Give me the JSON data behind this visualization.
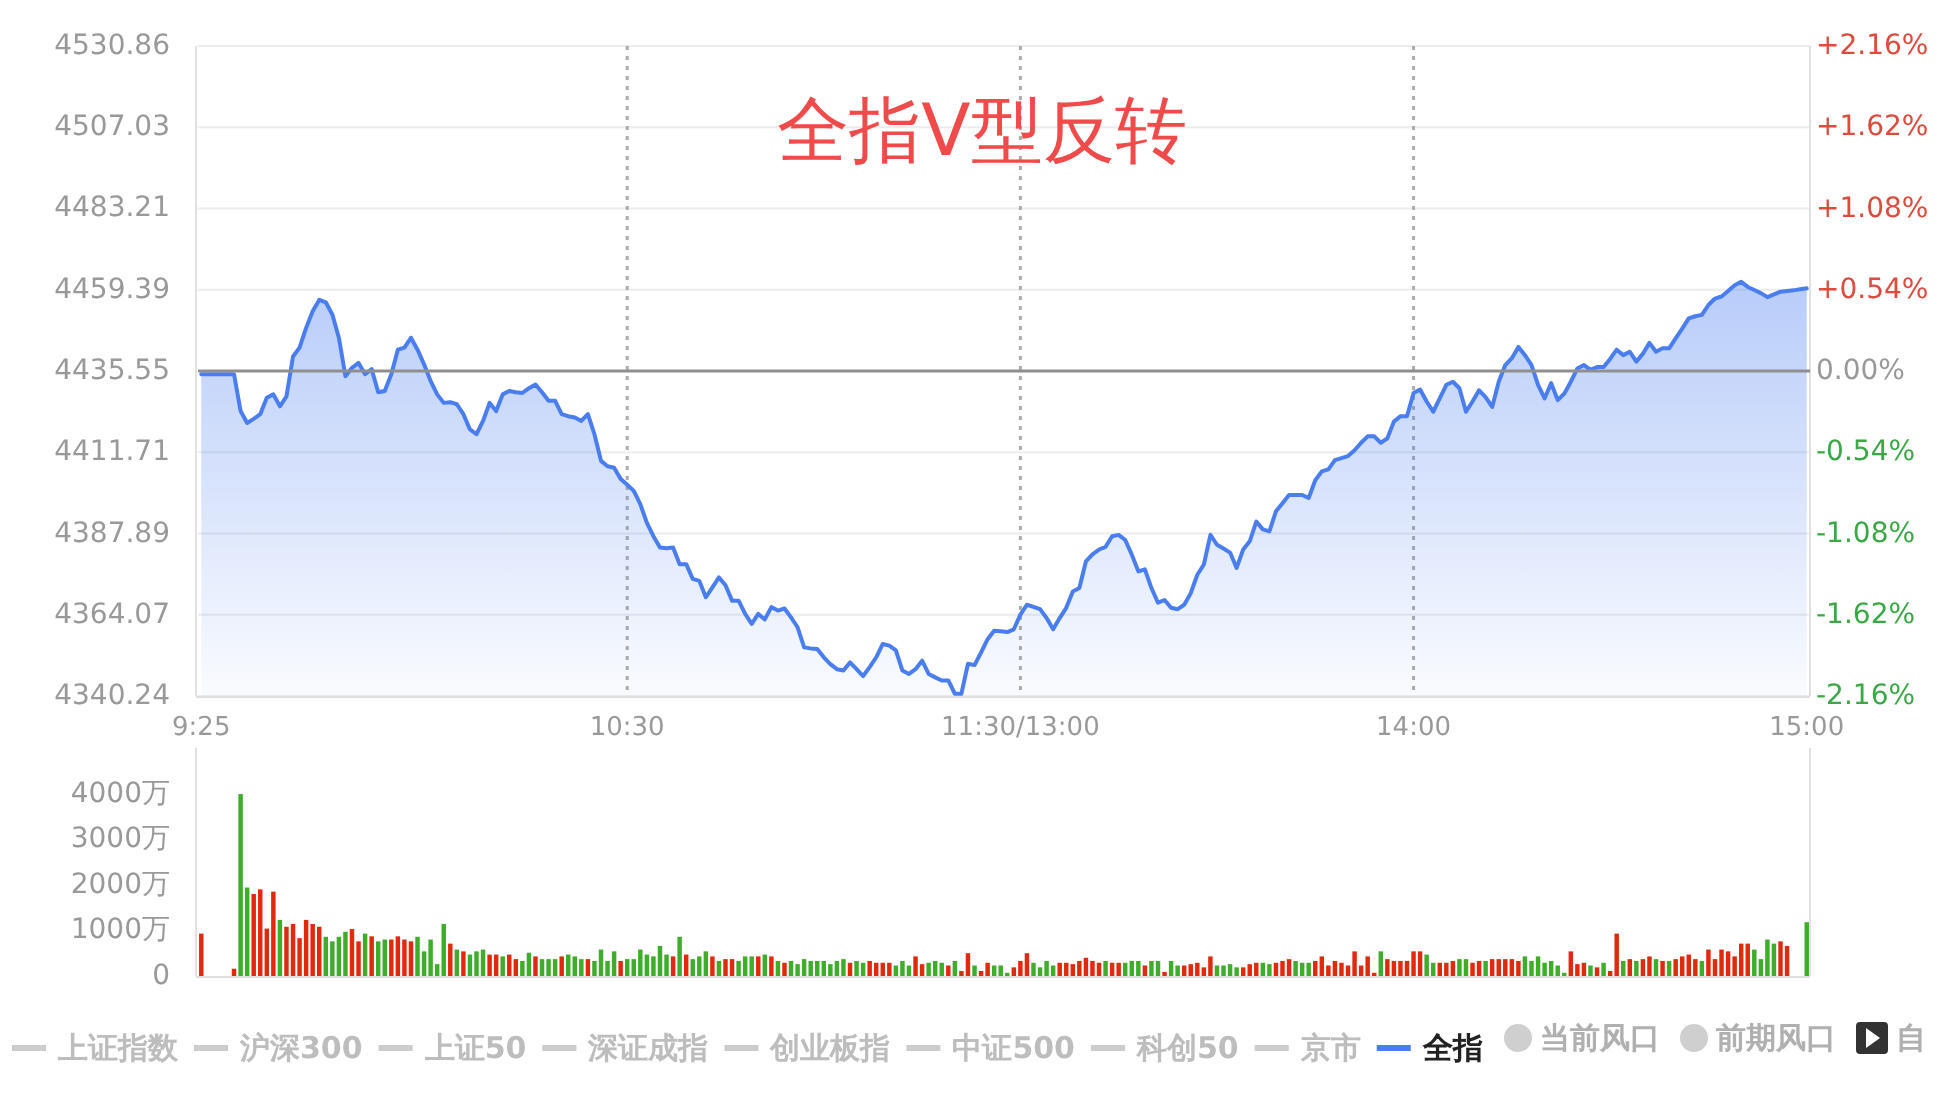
{
  "chart_data": [
    {
      "type": "area",
      "title": "全指V型反转",
      "categories": [
        "9:25",
        null,
        null,
        null,
        null,
        null,
        null,
        null,
        null,
        null,
        null,
        null,
        null,
        null,
        null,
        null,
        null,
        null,
        null,
        null,
        null,
        null,
        null,
        null,
        null,
        null,
        null,
        null,
        null,
        null,
        null,
        null,
        null,
        null,
        null,
        null,
        null,
        null,
        null,
        null,
        null,
        null,
        null,
        null,
        null,
        null,
        null,
        null,
        null,
        null,
        null,
        null,
        null,
        null,
        null,
        null,
        null,
        null,
        null,
        null,
        null,
        null,
        null,
        null,
        null,
        "10:30",
        null,
        null,
        null,
        null,
        null,
        null,
        null,
        null,
        null,
        null,
        null,
        null,
        null,
        null,
        null,
        null,
        null,
        null,
        null,
        null,
        null,
        null,
        null,
        null,
        null,
        null,
        null,
        null,
        null,
        null,
        null,
        null,
        null,
        null,
        null,
        null,
        null,
        null,
        null,
        null,
        null,
        null,
        null,
        null,
        null,
        null,
        null,
        null,
        null,
        null,
        null,
        null,
        null,
        null,
        null,
        null,
        null,
        null,
        null,
        "11:30/13:00",
        null,
        null,
        null,
        null,
        null,
        null,
        null,
        null,
        null,
        null,
        null,
        null,
        null,
        null,
        null,
        null,
        null,
        null,
        null,
        null,
        null,
        null,
        null,
        null,
        null,
        null,
        null,
        null,
        null,
        null,
        null,
        null,
        null,
        null,
        null,
        null,
        null,
        null,
        null,
        null,
        null,
        null,
        null,
        null,
        null,
        null,
        null,
        null,
        null,
        null,
        null,
        null,
        null,
        null,
        null,
        null,
        null,
        null,
        null,
        "14:00",
        null,
        null,
        null,
        null,
        null,
        null,
        null,
        null,
        null,
        null,
        null,
        null,
        null,
        null,
        null,
        null,
        null,
        null,
        null,
        null,
        null,
        null,
        null,
        null,
        null,
        null,
        null,
        null,
        null,
        null,
        null,
        null,
        null,
        null,
        null,
        null,
        null,
        null,
        null,
        null,
        null,
        null,
        null,
        null,
        null,
        null,
        null,
        null,
        null,
        null,
        null,
        null,
        null,
        null,
        null,
        null,
        null,
        null,
        null,
        "15:00"
      ],
      "ylim": [
        4340.24,
        4530.86
      ],
      "yticks": [
        4340.24,
        4364.07,
        4387.89,
        4411.71,
        4435.55,
        4459.39,
        4483.21,
        4507.03,
        4530.86
      ],
      "y2lim": [
        -2.16,
        2.16
      ],
      "y2ticks": [
        {
          "value": -2.16,
          "label": "-2.16%"
        },
        {
          "value": -1.62,
          "label": "-1.62%"
        },
        {
          "value": -1.08,
          "label": "-1.08%"
        },
        {
          "value": -0.54,
          "label": "-0.54%"
        },
        {
          "value": 0,
          "label": "0.00%"
        },
        {
          "value": 0.54,
          "label": "+0.54%"
        },
        {
          "value": 1.08,
          "label": "+1.08%"
        },
        {
          "value": 1.62,
          "label": "+1.62%"
        },
        {
          "value": 2.16,
          "label": "+2.16%"
        }
      ],
      "ref_lines": [
        {
          "axis": "y",
          "value": 4435.55,
          "color": "#8f8f8f"
        }
      ],
      "grid": true,
      "legend": "bottom",
      "series": [
        {
          "name": "全指",
          "color": "#4a7ef0",
          "values": [
            4434.6,
            4434.6,
            4434.6,
            4434.6,
            4434.6,
            4434.6,
            4423.8,
            4420.3,
            4421.5,
            4422.9,
            4427.7,
            4428.7,
            4425.2,
            4428.1,
            4439.8,
            4442.4,
            4448.2,
            4453.1,
            4456.4,
            4455.7,
            4452.1,
            4445.3,
            4434.0,
            4436.5,
            4437.9,
            4434.6,
            4436.1,
            4429.3,
            4429.7,
            4434.6,
            4441.8,
            4442.4,
            4445.3,
            4441.8,
            4437.5,
            4432.6,
            4428.7,
            4426.2,
            4426.4,
            4425.8,
            4422.9,
            4418.4,
            4417.0,
            4420.9,
            4426.2,
            4423.8,
            4428.7,
            4429.7,
            4429.3,
            4429.1,
            4430.5,
            4431.6,
            4429.3,
            4426.8,
            4426.8,
            4422.9,
            4422.3,
            4421.9,
            4420.9,
            4422.9,
            4417.0,
            4409.2,
            4407.6,
            4407.2,
            4403.9,
            4402.2,
            4400.4,
            4396.5,
            4391.0,
            4387.1,
            4383.8,
            4383.6,
            4383.8,
            4378.9,
            4378.9,
            4374.6,
            4374.0,
            4369.2,
            4372.1,
            4375.0,
            4372.7,
            4368.2,
            4368.2,
            4364.3,
            4361.4,
            4364.3,
            4362.7,
            4366.3,
            4365.3,
            4365.9,
            4363.3,
            4360.4,
            4354.5,
            4354.2,
            4354.0,
            4351.6,
            4349.6,
            4348.1,
            4347.7,
            4350.1,
            4348.1,
            4346.1,
            4348.7,
            4351.6,
            4355.5,
            4355.0,
            4353.6,
            4347.7,
            4346.7,
            4348.1,
            4350.6,
            4346.7,
            4345.7,
            4344.8,
            4344.8,
            4340.9,
            4340.9,
            4349.7,
            4349.3,
            4353.0,
            4356.9,
            4359.4,
            4359.2,
            4359.0,
            4359.8,
            4364.1,
            4367.0,
            4366.4,
            4365.7,
            4363.1,
            4359.8,
            4363.1,
            4366.1,
            4370.9,
            4371.9,
            4379.7,
            4381.8,
            4383.2,
            4384.0,
            4387.1,
            4387.5,
            4386.0,
            4381.7,
            4376.8,
            4377.4,
            4371.9,
            4367.6,
            4368.4,
            4366.1,
            4365.7,
            4367.0,
            4370.4,
            4375.8,
            4378.8,
            4387.5,
            4384.6,
            4383.5,
            4382.3,
            4377.8,
            4383.2,
            4385.6,
            4391.4,
            4389.1,
            4388.5,
            4394.4,
            4396.8,
            4399.2,
            4399.2,
            4399.2,
            4398.3,
            4403.5,
            4406.1,
            4406.7,
            4409.4,
            4410.0,
            4410.6,
            4412.3,
            4414.5,
            4416.4,
            4416.4,
            4414.5,
            4415.8,
            4420.7,
            4422.3,
            4422.3,
            4429.1,
            4430.1,
            4426.6,
            4423.6,
            4427.5,
            4431.5,
            4432.4,
            4430.5,
            4423.6,
            4426.6,
            4429.9,
            4427.9,
            4425.0,
            4432.4,
            4437.3,
            4439.3,
            4442.6,
            4440.2,
            4437.3,
            4431.5,
            4427.5,
            4432.0,
            4427.0,
            4428.9,
            4432.4,
            4436.3,
            4437.3,
            4435.9,
            4436.7,
            4436.7,
            4439.1,
            4441.8,
            4440.2,
            4441.2,
            4438.3,
            4440.6,
            4443.8,
            4441.2,
            4442.2,
            4442.2,
            4445.1,
            4448.0,
            4451.0,
            4451.6,
            4452.0,
            4454.9,
            4456.8,
            4457.4,
            4459.0,
            4460.7,
            4461.7,
            4460.2,
            4459.3,
            4458.4,
            4457.2,
            4458.0,
            4458.8,
            4459.0,
            4459.2,
            4459.5,
            4459.8
          ]
        }
      ],
      "annotations": [
        "上证指数",
        "沪深300",
        "上证50",
        "深证成指",
        "创业板指",
        "中证500",
        "科创50",
        "京市",
        "当前风口",
        "前期风口",
        "自"
      ]
    },
    {
      "type": "bar",
      "categories": [
        null,
        null,
        null,
        null,
        null,
        null,
        null,
        null,
        null,
        null,
        null,
        null,
        null,
        null,
        null,
        null,
        null,
        null,
        null,
        null,
        null,
        null,
        null,
        null,
        null,
        null,
        null,
        null,
        null,
        null,
        null,
        null,
        null,
        null,
        null,
        null,
        null,
        null,
        null,
        null,
        null,
        null,
        null,
        null,
        null,
        null,
        null,
        null,
        null,
        null,
        null,
        null,
        null,
        null,
        null,
        null,
        null,
        null,
        null,
        null,
        null,
        null,
        null,
        null,
        null,
        null,
        null,
        null,
        null,
        null,
        null,
        null,
        null,
        null,
        null,
        null,
        null,
        null,
        null,
        null,
        null,
        null,
        null,
        null,
        null,
        null,
        null,
        null,
        null,
        null,
        null,
        null,
        null,
        null,
        null,
        null,
        null,
        null,
        null,
        null,
        null,
        null,
        null,
        null,
        null,
        null,
        null,
        null,
        null,
        null,
        null,
        null,
        null,
        null,
        null,
        null,
        null,
        null,
        null,
        null,
        null,
        null,
        null,
        null,
        null,
        null,
        null,
        null,
        null,
        null,
        null,
        null,
        null,
        null,
        null,
        null,
        null,
        null,
        null,
        null,
        null,
        null,
        null,
        null,
        null,
        null,
        null,
        null,
        null,
        null,
        null,
        null,
        null,
        null,
        null,
        null,
        null,
        null,
        null,
        null,
        null,
        null,
        null,
        null,
        null,
        null,
        null,
        null,
        null,
        null,
        null,
        null,
        null,
        null,
        null,
        null,
        null,
        null,
        null,
        null,
        null,
        null,
        null,
        null,
        null,
        null,
        null,
        null,
        null,
        null,
        null,
        null,
        null,
        null,
        null,
        null,
        null,
        null,
        null,
        null,
        null,
        null,
        null,
        null,
        null,
        null,
        null,
        null,
        null,
        null,
        null,
        null,
        null,
        null,
        null,
        null,
        null,
        null,
        null,
        null,
        null,
        null,
        null,
        null,
        null,
        null,
        null,
        null,
        null,
        null,
        null,
        null,
        null,
        null,
        null,
        null,
        null,
        null,
        null,
        null,
        null,
        null,
        null,
        null,
        null,
        null
      ],
      "values": [
        930,
        null,
        null,
        null,
        null,
        160,
        3990,
        1940,
        1800,
        1900,
        1040,
        1850,
        1230,
        1080,
        1140,
        830,
        1230,
        1140,
        1080,
        860,
        760,
        860,
        970,
        1030,
        760,
        930,
        870,
        760,
        800,
        800,
        870,
        800,
        760,
        860,
        540,
        800,
        260,
        1140,
        710,
        580,
        540,
        470,
        540,
        580,
        470,
        470,
        430,
        470,
        370,
        330,
        510,
        430,
        370,
        370,
        370,
        430,
        470,
        430,
        370,
        370,
        330,
        580,
        330,
        540,
        330,
        370,
        370,
        580,
        470,
        430,
        660,
        470,
        430,
        860,
        470,
        370,
        430,
        540,
        430,
        330,
        370,
        370,
        330,
        430,
        430,
        430,
        470,
        430,
        330,
        290,
        330,
        260,
        370,
        330,
        330,
        330,
        260,
        330,
        370,
        290,
        330,
        290,
        330,
        290,
        290,
        290,
        230,
        330,
        230,
        430,
        260,
        290,
        330,
        290,
        230,
        330,
        110,
        500,
        230,
        110,
        290,
        230,
        230,
        70,
        190,
        330,
        500,
        290,
        190,
        330,
        230,
        290,
        290,
        260,
        330,
        400,
        330,
        290,
        330,
        290,
        290,
        290,
        330,
        330,
        230,
        330,
        330,
        90,
        330,
        230,
        230,
        260,
        290,
        190,
        430,
        230,
        230,
        260,
        190,
        190,
        260,
        290,
        290,
        260,
        290,
        330,
        370,
        330,
        290,
        290,
        330,
        430,
        230,
        330,
        290,
        230,
        540,
        230,
        430,
        70,
        540,
        370,
        330,
        330,
        330,
        540,
        540,
        470,
        290,
        290,
        290,
        330,
        370,
        370,
        290,
        330,
        330,
        370,
        370,
        370,
        370,
        330,
        430,
        330,
        430,
        290,
        330,
        230,
        70,
        540,
        260,
        290,
        230,
        190,
        290,
        110,
        930,
        330,
        370,
        330,
        370,
        430,
        370,
        330,
        330,
        370,
        430,
        470,
        370,
        330,
        580,
        370,
        580,
        540,
        430,
        710,
        710,
        580,
        370,
        800,
        710,
        760,
        660,
        null,
        null,
        1180
      ],
      "colors": [
        "#e3290d",
        null,
        null,
        null,
        null,
        "#e3290d",
        "#3ead2a",
        "#3ead2a",
        "#e3290d",
        "#e3290d",
        "#e3290d",
        "#e3290d",
        "#3ead2a",
        "#e3290d",
        "#e3290d",
        "#e3290d",
        "#e3290d",
        "#e3290d",
        "#e3290d",
        "#3ead2a",
        "#3ead2a",
        "#3ead2a",
        "#3ead2a",
        "#e3290d",
        "#e3290d",
        "#3ead2a",
        "#e3290d",
        "#3ead2a",
        "#3ead2a",
        "#e3290d",
        "#e3290d",
        "#e3290d",
        "#e3290d",
        "#3ead2a",
        "#3ead2a",
        "#3ead2a",
        "#3ead2a",
        "#3ead2a",
        "#e3290d",
        "#3ead2a",
        "#e3290d",
        "#3ead2a",
        "#3ead2a",
        "#3ead2a",
        "#e3290d",
        "#e3290d",
        "#3ead2a",
        "#e3290d",
        "#e3290d",
        "#3ead2a",
        "#3ead2a",
        "#e3290d",
        "#3ead2a",
        "#3ead2a",
        "#3ead2a",
        "#e3290d",
        "#3ead2a",
        "#3ead2a",
        "#3ead2a",
        "#e3290d",
        "#3ead2a",
        "#3ead2a",
        "#3ead2a",
        "#3ead2a",
        "#e3290d",
        "#3ead2a",
        "#3ead2a",
        "#3ead2a",
        "#3ead2a",
        "#3ead2a",
        "#3ead2a",
        "#3ead2a",
        "#e3290d",
        "#3ead2a",
        "#e3290d",
        "#3ead2a",
        "#3ead2a",
        "#3ead2a",
        "#e3290d",
        "#3ead2a",
        "#e3290d",
        "#e3290d",
        "#3ead2a",
        "#3ead2a",
        "#3ead2a",
        "#e3290d",
        "#3ead2a",
        "#e3290d",
        "#3ead2a",
        "#e3290d",
        "#3ead2a",
        "#3ead2a",
        "#3ead2a",
        "#3ead2a",
        "#3ead2a",
        "#3ead2a",
        "#3ead2a",
        "#3ead2a",
        "#3ead2a",
        "#e3290d",
        "#3ead2a",
        "#3ead2a",
        "#e3290d",
        "#e3290d",
        "#e3290d",
        "#e3290d",
        "#3ead2a",
        "#3ead2a",
        "#3ead2a",
        "#e3290d",
        "#e3290d",
        "#3ead2a",
        "#3ead2a",
        "#3ead2a",
        "#e3290d",
        "#3ead2a",
        "#e3290d",
        "#e3290d",
        "#3ead2a",
        "#e3290d",
        "#e3290d",
        "#3ead2a",
        "#3ead2a",
        "#3ead2a",
        "#e3290d",
        "#e3290d",
        "#e3290d",
        "#3ead2a",
        "#3ead2a",
        "#3ead2a",
        "#3ead2a",
        "#e3290d",
        "#e3290d",
        "#e3290d",
        "#e3290d",
        "#e3290d",
        "#e3290d",
        "#e3290d",
        "#3ead2a",
        "#e3290d",
        "#e3290d",
        "#3ead2a",
        "#3ead2a",
        "#3ead2a",
        "#e3290d",
        "#3ead2a",
        "#3ead2a",
        "#e3290d",
        "#3ead2a",
        "#3ead2a",
        "#e3290d",
        "#e3290d",
        "#e3290d",
        "#e3290d",
        "#e3290d",
        "#3ead2a",
        "#3ead2a",
        "#3ead2a",
        "#3ead2a",
        "#e3290d",
        "#e3290d",
        "#e3290d",
        "#3ead2a",
        "#3ead2a",
        "#e3290d",
        "#e3290d",
        "#e3290d",
        "#3ead2a",
        "#3ead2a",
        "#3ead2a",
        "#e3290d",
        "#e3290d",
        "#e3290d",
        "#e3290d",
        "#e3290d",
        "#e3290d",
        "#e3290d",
        "#e3290d",
        "#e3290d",
        "#e3290d",
        "#3ead2a",
        "#e3290d",
        "#e3290d",
        "#e3290d",
        "#e3290d",
        "#e3290d",
        "#e3290d",
        "#3ead2a",
        "#3ead2a",
        "#e3290d",
        "#e3290d",
        "#e3290d",
        "#3ead2a",
        "#3ead2a",
        "#e3290d",
        "#e3290d",
        "#3ead2a",
        "#e3290d",
        "#e3290d",
        "#e3290d",
        "#e3290d",
        "#e3290d",
        "#3ead2a",
        "#3ead2a",
        "#3ead2a",
        "#3ead2a",
        "#3ead2a",
        "#3ead2a",
        "#3ead2a",
        "#e3290d",
        "#e3290d",
        "#e3290d",
        "#3ead2a",
        "#e3290d",
        "#3ead2a",
        "#e3290d",
        "#e3290d",
        "#3ead2a",
        "#e3290d",
        "#3ead2a",
        "#e3290d",
        "#e3290d",
        "#3ead2a",
        "#e3290d",
        "#3ead2a",
        "#e3290d",
        "#e3290d",
        "#e3290d",
        "#e3290d",
        "#3ead2a",
        "#e3290d",
        "#e3290d",
        "#e3290d",
        "#e3290d",
        "#e3290d",
        "#e3290d",
        "#e3290d",
        "#3ead2a",
        "#3ead2a",
        "#3ead2a",
        "#3ead2a",
        "#e3290d",
        "#e3290d",
        null,
        null,
        "#3ead2a"
      ],
      "ylim": [
        0,
        5000
      ],
      "yticks": [
        0,
        {
          "value": 1000,
          "label": "1000万"
        },
        {
          "value": 2000,
          "label": "2000万"
        },
        {
          "value": 3000,
          "label": "3000万"
        },
        {
          "value": 4000,
          "label": "4000万"
        }
      ],
      "tick_labels": "y"
    }
  ]
}
